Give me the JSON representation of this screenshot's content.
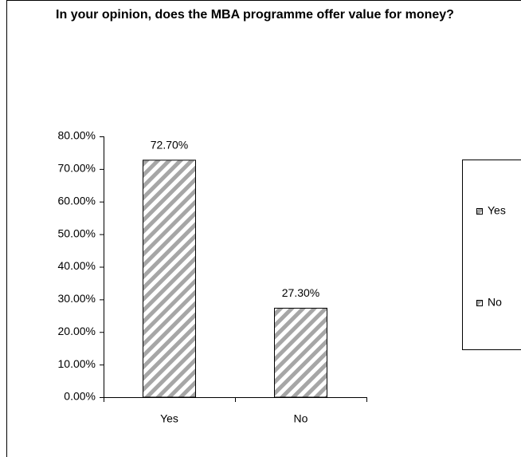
{
  "chart_data": {
    "type": "bar",
    "title": "In your opinion, does the MBA programme offer value for money?",
    "categories": [
      "Yes",
      "No"
    ],
    "values": [
      72.7,
      27.3
    ],
    "value_labels": [
      "72.70%",
      "27.30%"
    ],
    "color": "#a6a6a6",
    "ylim": [
      0,
      80
    ],
    "yticks": [
      {
        "value": 0,
        "label": "0.00%"
      },
      {
        "value": 10,
        "label": "10.00%"
      },
      {
        "value": 20,
        "label": "20.00%"
      },
      {
        "value": 30,
        "label": "30.00%"
      },
      {
        "value": 40,
        "label": "40.00%"
      },
      {
        "value": 50,
        "label": "50.00%"
      },
      {
        "value": 60,
        "label": "60.00%"
      },
      {
        "value": 70,
        "label": "70.00%"
      },
      {
        "value": 80,
        "label": "80.00%"
      }
    ],
    "grid": false,
    "legend": "right"
  }
}
